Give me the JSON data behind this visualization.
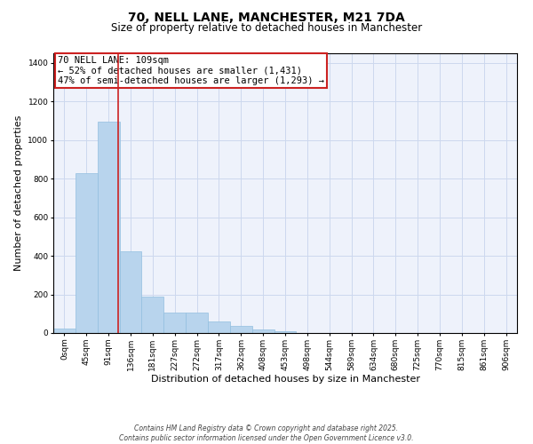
{
  "title": "70, NELL LANE, MANCHESTER, M21 7DA",
  "subtitle": "Size of property relative to detached houses in Manchester",
  "xlabel": "Distribution of detached houses by size in Manchester",
  "ylabel": "Number of detached properties",
  "bar_values": [
    25,
    830,
    1095,
    425,
    190,
    105,
    105,
    60,
    38,
    20,
    8,
    0,
    0,
    0,
    0,
    0,
    0,
    0,
    0,
    0,
    0
  ],
  "bar_labels": [
    "0sqm",
    "45sqm",
    "91sqm",
    "136sqm",
    "181sqm",
    "227sqm",
    "272sqm",
    "317sqm",
    "362sqm",
    "408sqm",
    "453sqm",
    "498sqm",
    "544sqm",
    "589sqm",
    "634sqm",
    "680sqm",
    "725sqm",
    "770sqm",
    "815sqm",
    "861sqm",
    "906sqm"
  ],
  "ylim": [
    0,
    1450
  ],
  "yticks": [
    0,
    200,
    400,
    600,
    800,
    1000,
    1200,
    1400
  ],
  "bar_color": "#b8d4ed",
  "bar_edge_color": "#92bfdf",
  "background_color": "#eef2fb",
  "grid_color": "#ccd8ee",
  "vline_x": 2.45,
  "vline_color": "#cc2222",
  "annotation_title": "70 NELL LANE: 109sqm",
  "annotation_line1": "← 52% of detached houses are smaller (1,431)",
  "annotation_line2": "47% of semi-detached houses are larger (1,293) →",
  "footer1": "Contains HM Land Registry data © Crown copyright and database right 2025.",
  "footer2": "Contains public sector information licensed under the Open Government Licence v3.0.",
  "title_fontsize": 10,
  "subtitle_fontsize": 8.5,
  "axis_label_fontsize": 8,
  "tick_fontsize": 6.5,
  "annotation_fontsize": 7.5,
  "footer_fontsize": 5.5
}
